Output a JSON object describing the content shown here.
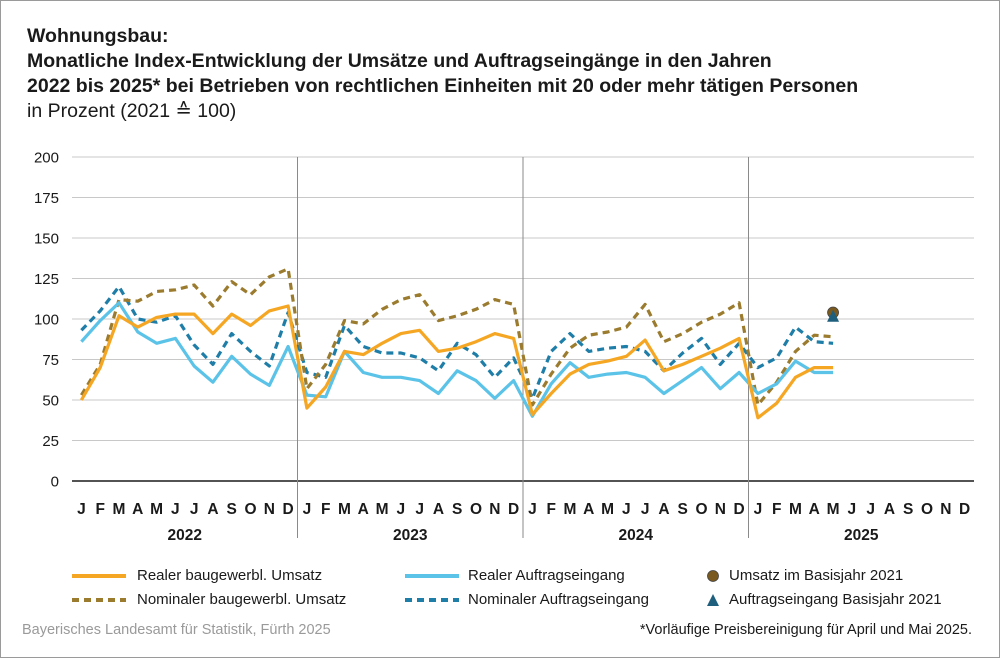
{
  "title": {
    "lines": [
      "Wohnungsbau:",
      "Monatliche Index-Entwicklung der Umsätze und Auftragseingänge in den Jahren",
      "2022 bis 2025* bei Betrieben von rechtlichen Einheiten mit 20 oder mehr tätigen Personen"
    ],
    "subtitle": "in Prozent (2021 ≙ 100)"
  },
  "legend": [
    {
      "label": "Realer baugewerbl. Umsatz"
    },
    {
      "label": "Realer Auftragseingang"
    },
    {
      "label": "Umsatz im Basisjahr 2021"
    },
    {
      "label": "Nominaler baugewerbl. Umsatz"
    },
    {
      "label": "Nominaler Auftragseingang"
    },
    {
      "label": "Auftragseingang Basisjahr 2021"
    }
  ],
  "source": "Bayerisches Landesamt für Statistik, Fürth 2025",
  "footnote": "*Vorläufige Preisbereinigung für April und Mai 2025.",
  "colors": {
    "real_umsatz": "#f5a623",
    "nominal_umsatz": "#9b7b2e",
    "real_auftrag": "#5bc3e8",
    "nominal_auftrag": "#1f7ea8",
    "basis_umsatz": "#7a5a1f",
    "basis_auftrag": "#1f5f7e",
    "grid": "#c8c8c8",
    "axis": "#1a1a1a"
  },
  "chart_data": {
    "type": "line",
    "ylim": [
      0,
      200
    ],
    "yticks": [
      0,
      25,
      50,
      75,
      100,
      125,
      150,
      175,
      200
    ],
    "grid": true,
    "legend_position": "bottom",
    "years": [
      "2022",
      "2023",
      "2024",
      "2025"
    ],
    "month_labels": [
      "J",
      "F",
      "M",
      "A",
      "M",
      "J",
      "J",
      "A",
      "S",
      "O",
      "N",
      "D"
    ],
    "x": [
      "2022-01",
      "2022-02",
      "2022-03",
      "2022-04",
      "2022-05",
      "2022-06",
      "2022-07",
      "2022-08",
      "2022-09",
      "2022-10",
      "2022-11",
      "2022-12",
      "2023-01",
      "2023-02",
      "2023-03",
      "2023-04",
      "2023-05",
      "2023-06",
      "2023-07",
      "2023-08",
      "2023-09",
      "2023-10",
      "2023-11",
      "2023-12",
      "2024-01",
      "2024-02",
      "2024-03",
      "2024-04",
      "2024-05",
      "2024-06",
      "2024-07",
      "2024-08",
      "2024-09",
      "2024-10",
      "2024-11",
      "2024-12",
      "2025-01",
      "2025-02",
      "2025-03",
      "2025-04",
      "2025-05"
    ],
    "series": [
      {
        "name": "Realer baugewerbl. Umsatz",
        "style": "solid",
        "values": [
          50,
          70,
          102,
          95,
          101,
          103,
          103,
          91,
          103,
          96,
          105,
          108,
          45,
          58,
          80,
          78,
          85,
          91,
          93,
          80,
          82,
          86,
          91,
          88,
          41,
          54,
          66,
          72,
          74,
          77,
          87,
          68,
          72,
          77,
          82,
          88,
          39,
          48,
          64,
          70,
          70
        ]
      },
      {
        "name": "Realer Auftragseingang",
        "style": "solid",
        "values": [
          86,
          99,
          110,
          92,
          85,
          88,
          71,
          61,
          77,
          66,
          59,
          83,
          53,
          52,
          80,
          67,
          64,
          64,
          62,
          54,
          68,
          62,
          51,
          62,
          40,
          60,
          73,
          64,
          66,
          67,
          64,
          54,
          62,
          70,
          57,
          67,
          54,
          60,
          74,
          67,
          67
        ]
      },
      {
        "name": "Nominaler baugewerbl. Umsatz",
        "style": "dashed",
        "values": [
          53,
          72,
          112,
          111,
          117,
          118,
          121,
          108,
          123,
          115,
          126,
          131,
          57,
          72,
          99,
          97,
          106,
          112,
          115,
          99,
          102,
          106,
          112,
          109,
          47,
          66,
          82,
          90,
          92,
          95,
          109,
          86,
          91,
          98,
          103,
          110,
          47,
          61,
          80,
          90,
          89
        ]
      },
      {
        "name": "Nominaler Auftragseingang",
        "style": "dashed",
        "values": [
          93,
          105,
          120,
          100,
          98,
          102,
          84,
          72,
          91,
          80,
          71,
          104,
          67,
          64,
          96,
          83,
          79,
          79,
          76,
          68,
          85,
          78,
          64,
          76,
          51,
          80,
          91,
          80,
          82,
          83,
          80,
          68,
          79,
          88,
          72,
          85,
          70,
          76,
          95,
          86,
          85
        ]
      }
    ],
    "markers": [
      {
        "name": "Umsatz im Basisjahr 2021",
        "x": "2025-05",
        "y": 104,
        "shape": "circle"
      },
      {
        "name": "Auftragseingang Basisjahr 2021",
        "x": "2025-05",
        "y": 102,
        "shape": "triangle"
      }
    ]
  }
}
